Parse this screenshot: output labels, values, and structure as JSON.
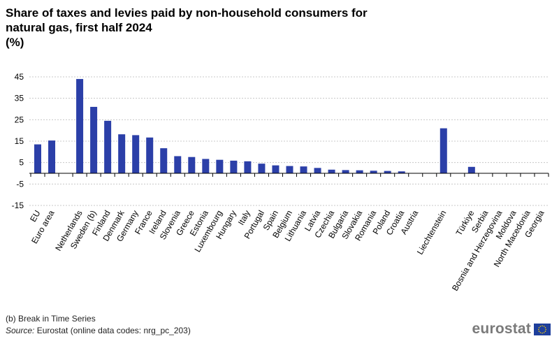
{
  "header": {
    "title_line1": "Share of taxes and levies paid by non-household consumers for",
    "title_line2": "natural gas, first half 2024",
    "unit": "(%)"
  },
  "footer": {
    "note": "(b) Break in Time Series",
    "source_label": "Source:",
    "source_text": "Eurostat (online data codes: nrg_pc_203)",
    "logo_text": "eurostat"
  },
  "colors": {
    "bar": "#2b3fa8",
    "grid": "#c8c8c8",
    "axis": "#000000",
    "flag_blue": "#1e3f9c",
    "flag_stars": "#ffd200"
  },
  "chart_data": {
    "type": "bar",
    "title": "Share of taxes and levies paid by non-household consumers for natural gas, first half 2024",
    "ylabel": "%",
    "xlabel": "",
    "ylim": [
      -15,
      45
    ],
    "yticks": [
      45,
      35,
      25,
      15,
      5,
      -5,
      -15
    ],
    "grid": true,
    "categories": [
      "EU",
      "Euro area",
      "",
      "Netherlands",
      "Sweden (b)",
      "Finland",
      "Denmark",
      "Germany",
      "France",
      "Ireland",
      "Slovenia",
      "Greece",
      "Estonia",
      "Luxembourg",
      "Hungary",
      "Italy",
      "Portugal",
      "Spain",
      "Belgium",
      "Lithuania",
      "Latvia",
      "Czechia",
      "Bulgaria",
      "Slovakia",
      "Romania",
      "Poland",
      "Croatia",
      "Austria",
      "",
      "Liechtenstein",
      "",
      "Türkiye",
      "Serbia",
      "Bosnia and Herzegovina",
      "Moldova",
      "North Macedonia",
      "Georgia"
    ],
    "values": [
      13.5,
      15.3,
      null,
      44.0,
      31.0,
      24.5,
      18.2,
      17.8,
      16.7,
      11.7,
      8.0,
      7.6,
      6.7,
      6.3,
      5.9,
      5.6,
      4.5,
      3.7,
      3.4,
      3.2,
      2.5,
      1.7,
      1.5,
      1.4,
      1.2,
      1.1,
      0.9,
      0.0,
      null,
      21.0,
      null,
      3.0,
      0.0,
      0.0,
      0.0,
      0.0,
      0.0
    ]
  }
}
